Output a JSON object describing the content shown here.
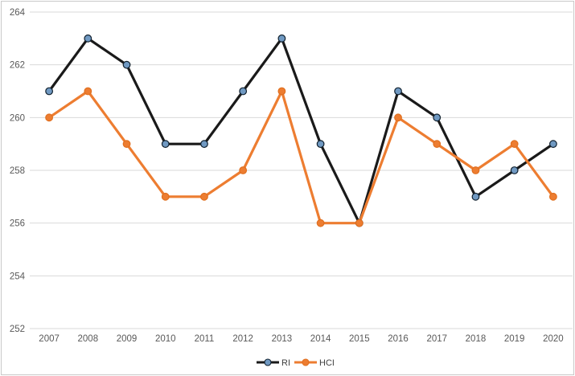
{
  "chart_data": {
    "type": "line",
    "title": "",
    "xlabel": "",
    "ylabel": "",
    "categories": [
      "2007",
      "2008",
      "2009",
      "2010",
      "2011",
      "2012",
      "2013",
      "2014",
      "2015",
      "2016",
      "2017",
      "2018",
      "2019",
      "2020"
    ],
    "series": [
      {
        "name": "RI",
        "values": [
          261,
          263,
          262,
          259,
          259,
          261,
          263,
          259,
          256,
          261,
          260,
          257,
          258,
          259
        ],
        "line_color": "#1A1A1A",
        "marker": "circle",
        "marker_fill": "#7099C2",
        "marker_stroke": "#10202E"
      },
      {
        "name": "HCI",
        "values": [
          260,
          261,
          259,
          257,
          257,
          258,
          261,
          256,
          256,
          260,
          259,
          258,
          259,
          257
        ],
        "line_color": "#ED7D31",
        "marker": "circle",
        "marker_fill": "#ED7D31",
        "marker_stroke": "#E06F1F"
      }
    ],
    "ylim": [
      252,
      264
    ],
    "ytick_step": 2,
    "yticks": [
      "252",
      "254",
      "256",
      "258",
      "260",
      "262",
      "264"
    ],
    "grid": "horizontal",
    "legend_position": "bottom",
    "legend_labels": [
      "RI",
      "HCI"
    ],
    "colors": {
      "background": "#FFFFFF",
      "border": "#C9C9C9",
      "gridline": "#D9D9D9",
      "axis_text": "#595959",
      "legend_text": "#404040"
    }
  }
}
